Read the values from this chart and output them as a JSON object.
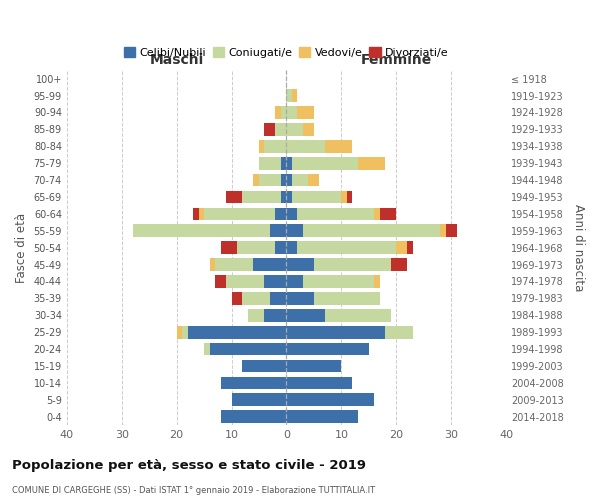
{
  "age_groups": [
    "100+",
    "95-99",
    "90-94",
    "85-89",
    "80-84",
    "75-79",
    "70-74",
    "65-69",
    "60-64",
    "55-59",
    "50-54",
    "45-49",
    "40-44",
    "35-39",
    "30-34",
    "25-29",
    "20-24",
    "15-19",
    "10-14",
    "5-9",
    "0-4"
  ],
  "birth_years": [
    "≤ 1918",
    "1919-1923",
    "1924-1928",
    "1929-1933",
    "1934-1938",
    "1939-1943",
    "1944-1948",
    "1949-1953",
    "1954-1958",
    "1959-1963",
    "1964-1968",
    "1969-1973",
    "1974-1978",
    "1979-1983",
    "1984-1988",
    "1989-1993",
    "1994-1998",
    "1999-2003",
    "2004-2008",
    "2009-2013",
    "2014-2018"
  ],
  "colors": {
    "celibi": "#3d6fa8",
    "coniugati": "#c5d8a0",
    "vedovi": "#f0c060",
    "divorziati": "#c0302a"
  },
  "maschi": {
    "celibi": [
      0,
      0,
      0,
      0,
      0,
      1,
      1,
      1,
      2,
      3,
      2,
      6,
      4,
      3,
      4,
      18,
      14,
      8,
      12,
      10,
      12
    ],
    "coniugati": [
      0,
      0,
      1,
      2,
      4,
      4,
      4,
      7,
      13,
      25,
      7,
      7,
      7,
      5,
      3,
      1,
      1,
      0,
      0,
      0,
      0
    ],
    "vedovi": [
      0,
      0,
      1,
      0,
      1,
      0,
      1,
      0,
      1,
      0,
      0,
      1,
      0,
      0,
      0,
      1,
      0,
      0,
      0,
      0,
      0
    ],
    "divorziati": [
      0,
      0,
      0,
      2,
      0,
      0,
      0,
      3,
      1,
      0,
      3,
      0,
      2,
      2,
      0,
      0,
      0,
      0,
      0,
      0,
      0
    ]
  },
  "femmine": {
    "celibi": [
      0,
      0,
      0,
      0,
      0,
      1,
      1,
      1,
      2,
      3,
      2,
      5,
      3,
      5,
      7,
      18,
      15,
      10,
      12,
      16,
      13
    ],
    "coniugati": [
      0,
      1,
      2,
      3,
      7,
      12,
      3,
      9,
      14,
      25,
      18,
      14,
      13,
      12,
      12,
      5,
      0,
      0,
      0,
      0,
      0
    ],
    "vedovi": [
      0,
      1,
      3,
      2,
      5,
      5,
      2,
      1,
      1,
      1,
      2,
      0,
      1,
      0,
      0,
      0,
      0,
      0,
      0,
      0,
      0
    ],
    "divorziati": [
      0,
      0,
      0,
      0,
      0,
      0,
      0,
      1,
      3,
      2,
      1,
      3,
      0,
      0,
      0,
      0,
      0,
      0,
      0,
      0,
      0
    ]
  },
  "xlim": 40,
  "title": "Popolazione per età, sesso e stato civile - 2019",
  "subtitle": "COMUNE DI CARGEGHE (SS) - Dati ISTAT 1° gennaio 2019 - Elaborazione TUTTITALIA.IT",
  "xlabel_left": "Maschi",
  "xlabel_right": "Femmine",
  "ylabel_left": "Fasce di età",
  "ylabel_right": "Anni di nascita",
  "legend_labels": [
    "Celibi/Nubili",
    "Coniugati/e",
    "Vedovi/e",
    "Divorziati/e"
  ]
}
